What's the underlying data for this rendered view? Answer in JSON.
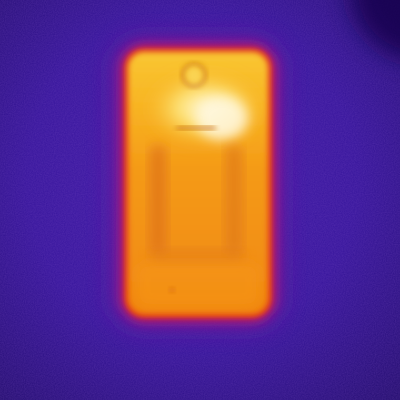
{
  "image": {
    "kind": "thermal-image",
    "subject": "smartphone-back-icon",
    "palette": {
      "background_deep": "#2a0f82",
      "background_mid": "#3d17a6",
      "background_edge": "#220b70",
      "glow_purple": "#7a1fa8",
      "glow_magenta": "#c2187a",
      "body_red": "#e8401a",
      "body_orange": "#f28a10",
      "body_amber": "#f7a81c",
      "body_yellow": "#fbd84a",
      "hotspot_white": "#fff6d6"
    }
  }
}
